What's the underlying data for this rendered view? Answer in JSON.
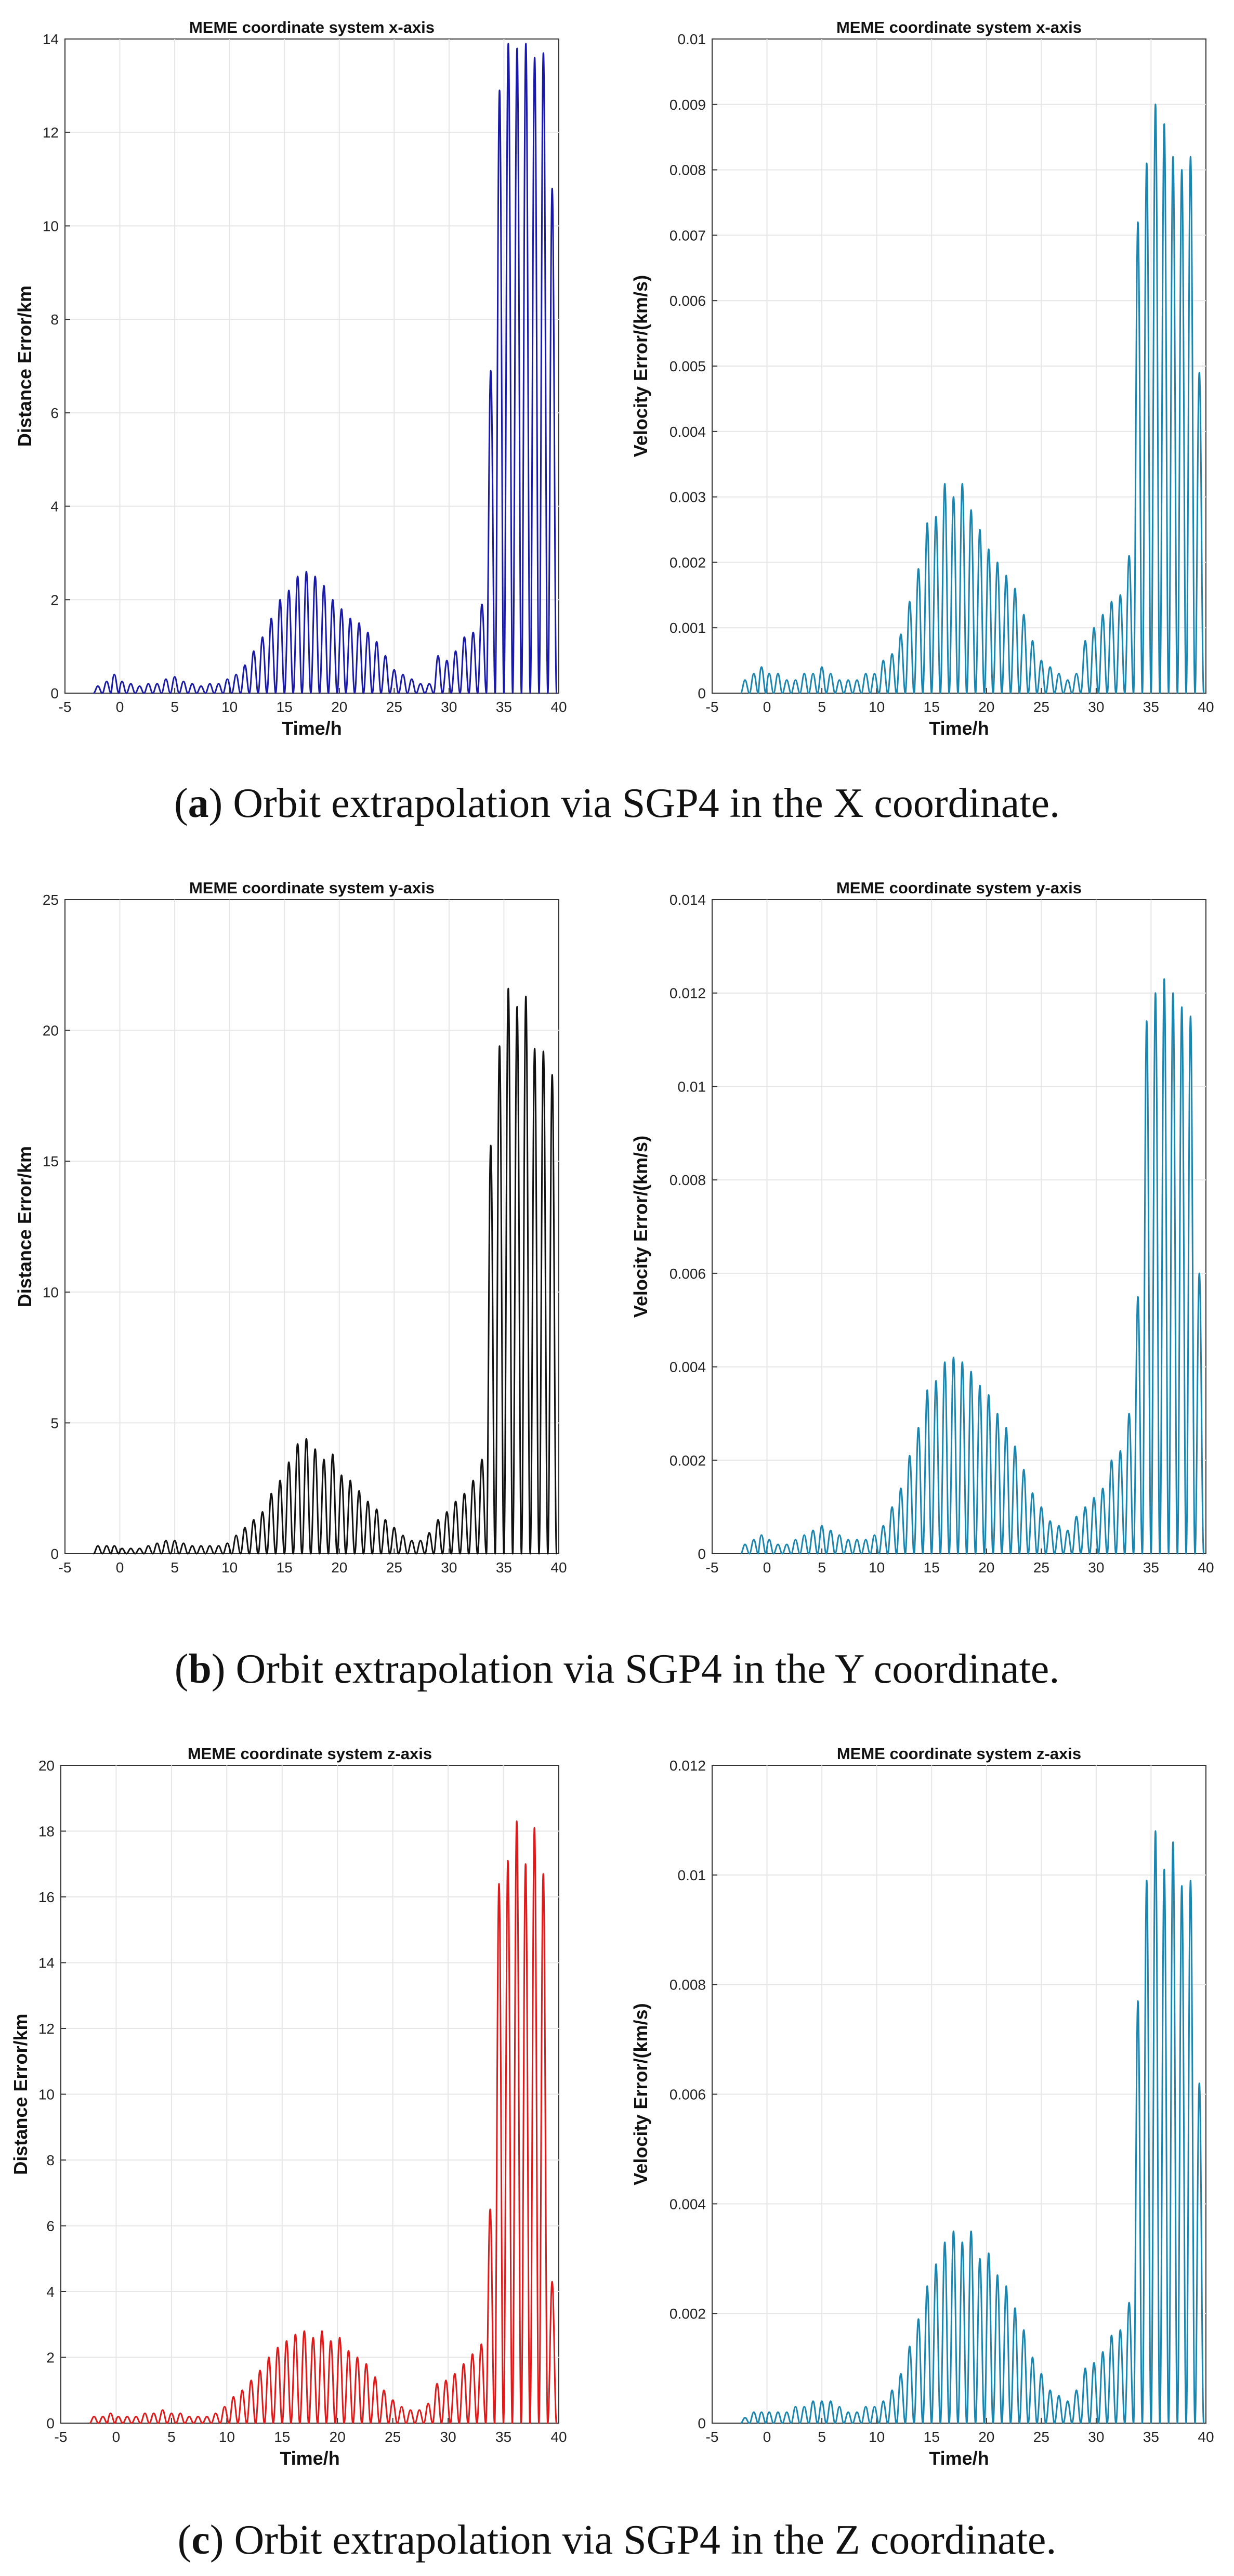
{
  "colors": {
    "x_dist": "#1a1aa8",
    "y_dist": "#111111",
    "z_dist": "#e01a1a",
    "vel": "#1a86b0",
    "grid": "#e6e6e6",
    "axis": "#333333"
  },
  "captions": [
    {
      "letter": "a",
      "open": "(",
      "close": ")",
      "text": " Orbit extrapolation via SGP4 in the X coordinate."
    },
    {
      "letter": "b",
      "open": "(",
      "close": ")",
      "text": " Orbit extrapolation via SGP4 in the Y coordinate."
    },
    {
      "letter": "c",
      "open": "(",
      "close": ")",
      "text": " Orbit extrapolation via SGP4 in the Z coordinate."
    }
  ],
  "chart_data": [
    {
      "id": "a-distance",
      "type": "line",
      "title": "MEME coordinate system x-axis",
      "xlabel": "Time/h",
      "ylabel": "Distance Error/km",
      "xlim": [
        -5,
        40
      ],
      "ylim": [
        0,
        14
      ],
      "xticks": [
        "-5",
        "0",
        "5",
        "10",
        "15",
        "20",
        "25",
        "30",
        "35",
        "40"
      ],
      "yticks": [
        "0",
        "2",
        "4",
        "6",
        "8",
        "10",
        "12",
        "14"
      ],
      "color_key": "x_dist",
      "series": [
        {
          "name": "x distance error",
          "x": [
            -2.0,
            -1.2,
            -0.5,
            0.2,
            1.0,
            1.8,
            2.6,
            3.4,
            4.2,
            5.0,
            5.8,
            6.6,
            7.4,
            8.2,
            9.0,
            9.8,
            10.6,
            11.4,
            12.2,
            13.0,
            13.8,
            14.6,
            15.4,
            16.2,
            17.0,
            17.8,
            18.6,
            19.4,
            20.2,
            21.0,
            21.8,
            22.6,
            23.4,
            24.2,
            25.0,
            25.8,
            26.6,
            27.4,
            28.2,
            29.0,
            29.8,
            30.6,
            31.4,
            32.2,
            33.0,
            33.8,
            34.6,
            35.4,
            36.2,
            37.0,
            37.8,
            38.6,
            39.4
          ],
          "values": [
            0.15,
            0.25,
            0.4,
            0.25,
            0.2,
            0.15,
            0.2,
            0.2,
            0.3,
            0.35,
            0.25,
            0.2,
            0.15,
            0.2,
            0.2,
            0.3,
            0.4,
            0.6,
            0.9,
            1.2,
            1.6,
            2.0,
            2.2,
            2.5,
            2.6,
            2.5,
            2.3,
            2.0,
            1.8,
            1.6,
            1.5,
            1.3,
            1.1,
            0.8,
            0.5,
            0.4,
            0.3,
            0.2,
            0.2,
            0.8,
            0.7,
            0.9,
            1.2,
            1.3,
            1.9,
            6.9,
            12.9,
            13.9,
            13.8,
            13.9,
            13.6,
            13.7,
            10.8
          ]
        }
      ]
    },
    {
      "id": "a-velocity",
      "type": "line",
      "title": "MEME coordinate system x-axis",
      "xlabel": "Time/h",
      "ylabel": "Velocity Error/(km/s)",
      "xlim": [
        -5,
        40
      ],
      "ylim": [
        0,
        0.01
      ],
      "xticks": [
        "-5",
        "0",
        "5",
        "10",
        "15",
        "20",
        "25",
        "30",
        "35",
        "40"
      ],
      "yticks": [
        "0",
        "0.001",
        "0.002",
        "0.003",
        "0.004",
        "0.005",
        "0.006",
        "0.007",
        "0.008",
        "0.009",
        "0.01"
      ],
      "color_key": "vel",
      "series": [
        {
          "name": "x velocity error",
          "x": [
            -2.0,
            -1.2,
            -0.5,
            0.2,
            1.0,
            1.8,
            2.6,
            3.4,
            4.2,
            5.0,
            5.8,
            6.6,
            7.4,
            8.2,
            9.0,
            9.8,
            10.6,
            11.4,
            12.2,
            13.0,
            13.8,
            14.6,
            15.4,
            16.2,
            17.0,
            17.8,
            18.6,
            19.4,
            20.2,
            21.0,
            21.8,
            22.6,
            23.4,
            24.2,
            25.0,
            25.8,
            26.6,
            27.4,
            28.2,
            29.0,
            29.8,
            30.6,
            31.4,
            32.2,
            33.0,
            33.8,
            34.6,
            35.4,
            36.2,
            37.0,
            37.8,
            38.6,
            39.4
          ],
          "values": [
            0.0002,
            0.0003,
            0.0004,
            0.0003,
            0.0003,
            0.0002,
            0.0002,
            0.0003,
            0.0003,
            0.0004,
            0.0003,
            0.0002,
            0.0002,
            0.0002,
            0.0003,
            0.0003,
            0.0005,
            0.0006,
            0.0009,
            0.0014,
            0.0019,
            0.0026,
            0.0027,
            0.0032,
            0.003,
            0.0032,
            0.0028,
            0.0025,
            0.0022,
            0.002,
            0.0018,
            0.0016,
            0.0012,
            0.0008,
            0.0005,
            0.0004,
            0.0003,
            0.0002,
            0.0003,
            0.0008,
            0.001,
            0.0012,
            0.0014,
            0.0015,
            0.0021,
            0.0072,
            0.0081,
            0.009,
            0.0087,
            0.0082,
            0.008,
            0.0082,
            0.0049
          ]
        }
      ]
    },
    {
      "id": "b-distance",
      "type": "line",
      "title": "MEME coordinate system y-axis",
      "xlabel": "",
      "ylabel": "Distance Error/km",
      "xlim": [
        -5,
        40
      ],
      "ylim": [
        0,
        25
      ],
      "xticks": [
        "-5",
        "0",
        "5",
        "10",
        "15",
        "20",
        "25",
        "30",
        "35",
        "40"
      ],
      "yticks": [
        "0",
        "5",
        "10",
        "15",
        "20",
        "25"
      ],
      "color_key": "y_dist",
      "series": [
        {
          "name": "y distance error",
          "x": [
            -2.0,
            -1.2,
            -0.5,
            0.2,
            1.0,
            1.8,
            2.6,
            3.4,
            4.2,
            5.0,
            5.8,
            6.6,
            7.4,
            8.2,
            9.0,
            9.8,
            10.6,
            11.4,
            12.2,
            13.0,
            13.8,
            14.6,
            15.4,
            16.2,
            17.0,
            17.8,
            18.6,
            19.4,
            20.2,
            21.0,
            21.8,
            22.6,
            23.4,
            24.2,
            25.0,
            25.8,
            26.6,
            27.4,
            28.2,
            29.0,
            29.8,
            30.6,
            31.4,
            32.2,
            33.0,
            33.8,
            34.6,
            35.4,
            36.2,
            37.0,
            37.8,
            38.6,
            39.4
          ],
          "values": [
            0.3,
            0.3,
            0.3,
            0.2,
            0.2,
            0.2,
            0.3,
            0.4,
            0.5,
            0.5,
            0.4,
            0.3,
            0.3,
            0.3,
            0.3,
            0.4,
            0.7,
            1.0,
            1.3,
            1.6,
            2.3,
            2.8,
            3.5,
            4.2,
            4.4,
            4.0,
            3.6,
            3.8,
            3.0,
            2.8,
            2.4,
            2.0,
            1.7,
            1.3,
            1.0,
            0.7,
            0.5,
            0.5,
            0.8,
            1.3,
            1.6,
            2.0,
            2.3,
            2.8,
            3.6,
            15.6,
            19.4,
            21.6,
            20.9,
            21.3,
            19.3,
            19.2,
            18.3
          ]
        }
      ]
    },
    {
      "id": "b-velocity",
      "type": "line",
      "title": "MEME coordinate system y-axis",
      "xlabel": "",
      "ylabel": "Velocity Error/(km/s)",
      "xlim": [
        -5,
        40
      ],
      "ylim": [
        0,
        0.014
      ],
      "xticks": [
        "-5",
        "0",
        "5",
        "10",
        "15",
        "20",
        "25",
        "30",
        "35",
        "40"
      ],
      "yticks": [
        "0",
        "0.002",
        "0.004",
        "0.006",
        "0.008",
        "0.01",
        "0.012",
        "0.014"
      ],
      "color_key": "vel",
      "series": [
        {
          "name": "y velocity error",
          "x": [
            -2.0,
            -1.2,
            -0.5,
            0.2,
            1.0,
            1.8,
            2.6,
            3.4,
            4.2,
            5.0,
            5.8,
            6.6,
            7.4,
            8.2,
            9.0,
            9.8,
            10.6,
            11.4,
            12.2,
            13.0,
            13.8,
            14.6,
            15.4,
            16.2,
            17.0,
            17.8,
            18.6,
            19.4,
            20.2,
            21.0,
            21.8,
            22.6,
            23.4,
            24.2,
            25.0,
            25.8,
            26.6,
            27.4,
            28.2,
            29.0,
            29.8,
            30.6,
            31.4,
            32.2,
            33.0,
            33.8,
            34.6,
            35.4,
            36.2,
            37.0,
            37.8,
            38.6,
            39.4
          ],
          "values": [
            0.0002,
            0.0003,
            0.0004,
            0.0003,
            0.0002,
            0.0002,
            0.0003,
            0.0004,
            0.0005,
            0.0006,
            0.0005,
            0.0004,
            0.0003,
            0.0003,
            0.0003,
            0.0004,
            0.0006,
            0.001,
            0.0014,
            0.0021,
            0.0027,
            0.0035,
            0.0037,
            0.0041,
            0.0042,
            0.0041,
            0.0039,
            0.0036,
            0.0034,
            0.003,
            0.0027,
            0.0023,
            0.0018,
            0.0013,
            0.001,
            0.0007,
            0.0006,
            0.0005,
            0.0008,
            0.001,
            0.0012,
            0.0014,
            0.002,
            0.0022,
            0.003,
            0.0055,
            0.0114,
            0.012,
            0.0123,
            0.012,
            0.0117,
            0.0115,
            0.006
          ]
        }
      ]
    },
    {
      "id": "c-distance",
      "type": "line",
      "title": "MEME coordinate system z-axis",
      "xlabel": "Time/h",
      "ylabel": "Distance Error/km",
      "xlim": [
        -5,
        40
      ],
      "ylim": [
        0,
        20
      ],
      "xticks": [
        "-5",
        "0",
        "5",
        "10",
        "15",
        "20",
        "25",
        "30",
        "35",
        "40"
      ],
      "yticks": [
        "0",
        "2",
        "4",
        "6",
        "8",
        "10",
        "12",
        "14",
        "16",
        "18",
        "20"
      ],
      "color_key": "z_dist",
      "series": [
        {
          "name": "z distance error",
          "x": [
            -2.0,
            -1.2,
            -0.5,
            0.2,
            1.0,
            1.8,
            2.6,
            3.4,
            4.2,
            5.0,
            5.8,
            6.6,
            7.4,
            8.2,
            9.0,
            9.8,
            10.6,
            11.4,
            12.2,
            13.0,
            13.8,
            14.6,
            15.4,
            16.2,
            17.0,
            17.8,
            18.6,
            19.4,
            20.2,
            21.0,
            21.8,
            22.6,
            23.4,
            24.2,
            25.0,
            25.8,
            26.6,
            27.4,
            28.2,
            29.0,
            29.8,
            30.6,
            31.4,
            32.2,
            33.0,
            33.8,
            34.6,
            35.4,
            36.2,
            37.0,
            37.8,
            38.6,
            39.4
          ],
          "values": [
            0.2,
            0.2,
            0.3,
            0.2,
            0.2,
            0.2,
            0.3,
            0.3,
            0.4,
            0.3,
            0.3,
            0.2,
            0.2,
            0.2,
            0.3,
            0.5,
            0.8,
            1.0,
            1.3,
            1.6,
            2.0,
            2.3,
            2.5,
            2.7,
            2.8,
            2.6,
            2.8,
            2.5,
            2.6,
            2.2,
            2.0,
            1.8,
            1.4,
            1.0,
            0.7,
            0.5,
            0.4,
            0.4,
            0.6,
            1.2,
            1.3,
            1.5,
            1.8,
            2.1,
            2.4,
            6.5,
            16.4,
            17.1,
            18.3,
            17.0,
            18.1,
            16.7,
            4.3
          ]
        }
      ]
    },
    {
      "id": "c-velocity",
      "type": "line",
      "title": "MEME coordinate system z-axis",
      "xlabel": "Time/h",
      "ylabel": "Velocity Error/(km/s)",
      "xlim": [
        -5,
        40
      ],
      "ylim": [
        0,
        0.012
      ],
      "xticks": [
        "-5",
        "0",
        "5",
        "10",
        "15",
        "20",
        "25",
        "30",
        "35",
        "40"
      ],
      "yticks": [
        "0",
        "0.002",
        "0.004",
        "0.006",
        "0.008",
        "0.01",
        "0.012"
      ],
      "color_key": "vel",
      "series": [
        {
          "name": "z velocity error",
          "x": [
            -2.0,
            -1.2,
            -0.5,
            0.2,
            1.0,
            1.8,
            2.6,
            3.4,
            4.2,
            5.0,
            5.8,
            6.6,
            7.4,
            8.2,
            9.0,
            9.8,
            10.6,
            11.4,
            12.2,
            13.0,
            13.8,
            14.6,
            15.4,
            16.2,
            17.0,
            17.8,
            18.6,
            19.4,
            20.2,
            21.0,
            21.8,
            22.6,
            23.4,
            24.2,
            25.0,
            25.8,
            26.6,
            27.4,
            28.2,
            29.0,
            29.8,
            30.6,
            31.4,
            32.2,
            33.0,
            33.8,
            34.6,
            35.4,
            36.2,
            37.0,
            37.8,
            38.6,
            39.4
          ],
          "values": [
            0.0001,
            0.0002,
            0.0002,
            0.0002,
            0.0002,
            0.0002,
            0.0003,
            0.0003,
            0.0004,
            0.0004,
            0.0004,
            0.0003,
            0.0002,
            0.0002,
            0.0003,
            0.0003,
            0.0004,
            0.0006,
            0.0009,
            0.0014,
            0.0019,
            0.0025,
            0.0029,
            0.0033,
            0.0035,
            0.0033,
            0.0035,
            0.003,
            0.0031,
            0.0027,
            0.0025,
            0.0021,
            0.0017,
            0.0012,
            0.0009,
            0.0006,
            0.0005,
            0.0004,
            0.0006,
            0.001,
            0.0011,
            0.0013,
            0.0016,
            0.0017,
            0.0022,
            0.0077,
            0.0099,
            0.0108,
            0.0101,
            0.0106,
            0.0098,
            0.0099,
            0.0062
          ]
        }
      ]
    }
  ]
}
